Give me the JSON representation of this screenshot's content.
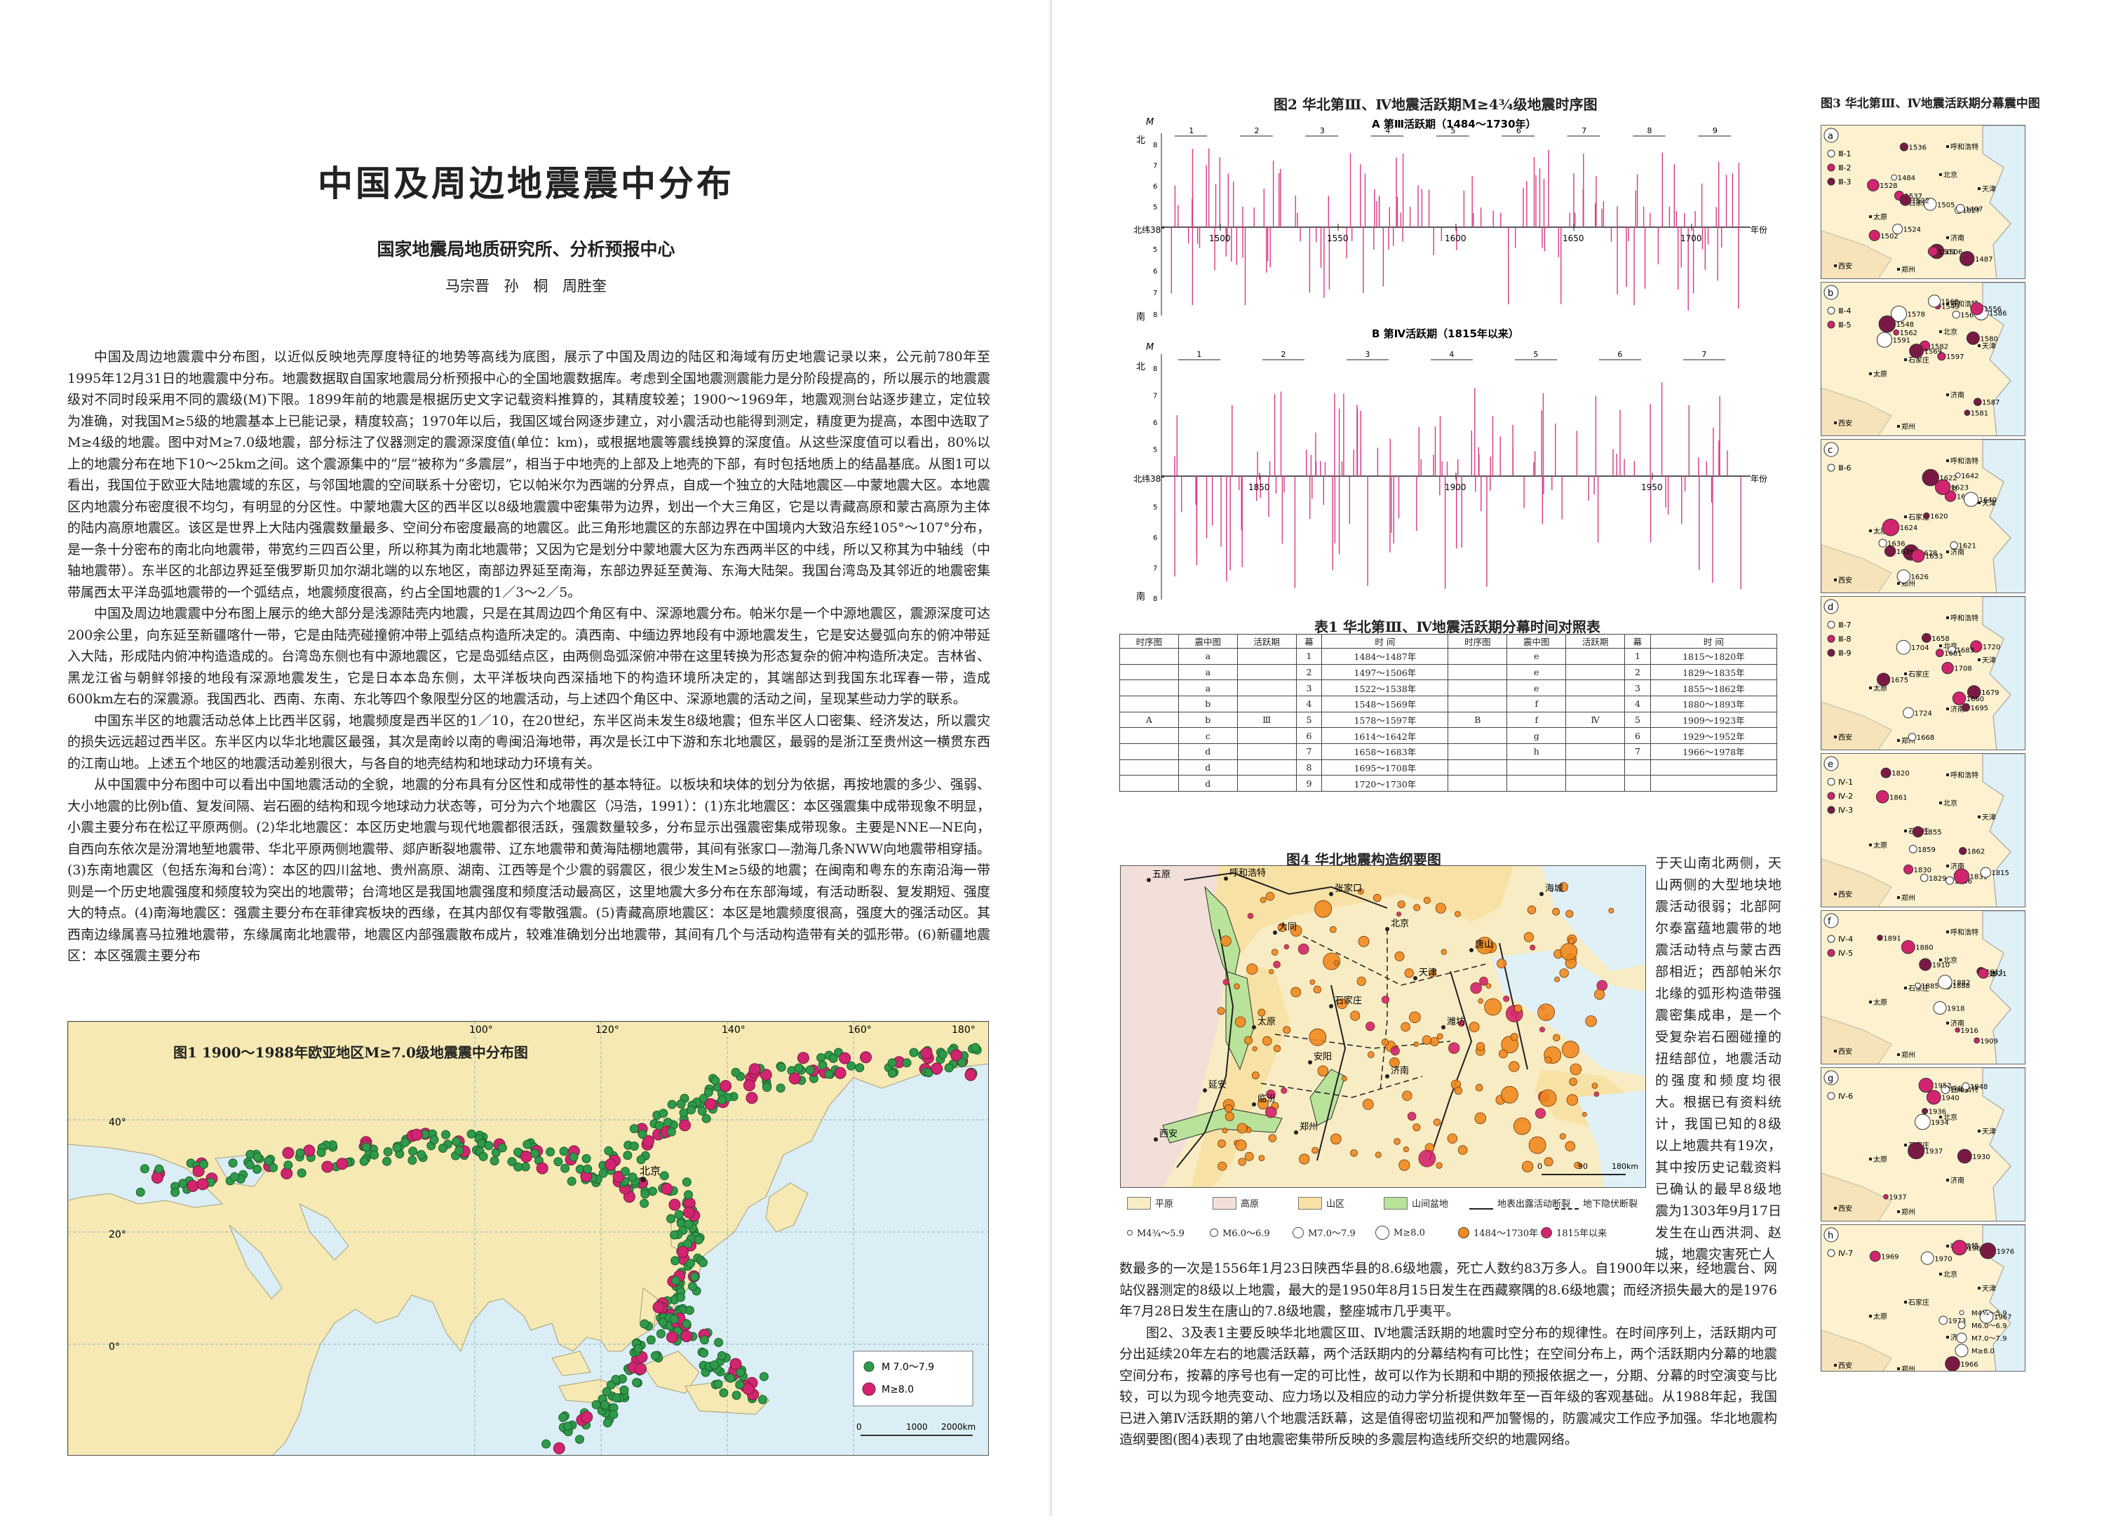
{
  "left_page": {
    "title": "中国及周边地震震中分布",
    "subtitle": "国家地震局地质研究所、分析预报中心",
    "authors": "马宗晋 孙 桐 周胜奎",
    "paragraphs": [
      "中国及周边地震震中分布图，以近似反映地壳厚度特征的地势等高线为底图，展示了中国及周边的陆区和海域有历史地震记录以来，公元前780年至1995年12月31日的地震震中分布。地震数据取自国家地震局分析预报中心的全国地震数据库。考虑到全国地震测震能力是分阶段提高的，所以展示的地震震级对不同时段采用不同的震级(M)下限。1899年前的地震是根据历史文字记载资料推算的，其精度较差；1900～1969年，地震观测台站逐步建立，定位较为准确，对我国M≥5级的地震基本上已能记录，精度较高；1970年以后，我国区域台网逐步建立，对小震活动也能得到测定，精度更为提高，本图中选取了M≥4级的地震。图中对M≥7.0级地震，部分标注了仪器测定的震源深度值(单位：km)，或根据地震等震线换算的深度值。从这些深度值可以看出，80%以上的地震分布在地下10～25km之间。这个震源集中的“层”被称为“多震层”，相当于中地壳的上部及上地壳的下部，有时包括地质上的结晶基底。从图1可以看出，我国位于欧亚大陆地震域的东区，与邻国地震的空间联系十分密切，它以帕米尔为西端的分界点，自成一个独立的大陆地震区—中蒙地震大区。本地震区内地震分布密度很不均匀，有明显的分区性。中蒙地震大区的西半区以8级地震震中密集带为边界，划出一个大三角区，它是以青藏高原和蒙古高原为主体的陆内高原地震区。该区是世界上大陆内强震数量最多、空间分布密度最高的地震区。此三角形地震区的东部边界在中国境内大致沿东经105°～107°分布，是一条十分密布的南北向地震带，带宽约三四百公里，所以称其为南北地震带；又因为它是划分中蒙地震大区为东西两半区的中线，所以又称其为中轴线（中轴地震带）。东半区的北部边界延至俄罗斯贝加尔湖北端的以东地区，南部边界延至南海，东部边界延至黄海、东海大陆架。我国台湾岛及其邻近的地震密集带属西太平洋岛弧地震带的一个弧结点，地震频度很高，约占全国地震的1／3～2／5。",
      "中国及周边地震震中分布图上展示的绝大部分是浅源陆壳内地震，只是在其周边四个角区有中、深源地震分布。帕米尔是一个中源地震区，震源深度可达200余公里，向东延至新疆喀什一带，它是由陆壳碰撞俯冲带上弧结点构造所决定的。滇西南、中缅边界地段有中源地震发生，它是安达曼弧向东的俯冲带延入大陆，形成陆内俯冲构造造成的。台湾岛东侧也有中源地震区，它是岛弧结点区，由两侧岛弧深俯冲带在这里转换为形态复杂的俯冲构造所决定。吉林省、黑龙江省与朝鲜邻接的地段有深源地震发生，它是日本本岛东侧，太平洋板块向西深插地下的构造环境所决定的，其端部达到我国东北珲春一带，造成600km左右的深震源。我国西北、西南、东南、东北等四个象限型分区的地震活动，与上述四个角区中、深源地震的活动之间，呈现某些动力学的联系。",
      "中国东半区的地震活动总体上比西半区弱，地震频度是西半区的1／10，在20世纪，东半区尚未发生8级地震；但东半区人口密集、经济发达，所以震灾的损失远远超过西半区。东半区内以华北地震区最强，其次是南岭以南的粤闽沿海地带，再次是长江中下游和东北地震区，最弱的是浙江至贵州这一横贯东西的江南山地。上述五个地区的地震活动差别很大，与各自的地壳结构和地球动力环境有关。",
      "从中国震中分布图中可以看出中国地震活动的全貌，地震的分布具有分区性和成带性的基本特征。以板块和块体的划分为依据，再按地震的多少、强弱、大小地震的比例b值、复发间隔、岩石圈的结构和现今地球动力状态等，可分为六个地震区（冯浩，1991）：(1)东北地震区：本区强震集中成带现象不明显，小震主要分布在松辽平原两侧。(2)华北地震区：本区历史地震与现代地震都很活跃，强震数量较多，分布显示出强震密集成带现象。主要是NNE—NE向，自西向东依次是汾渭地堑地震带、华北平原两侧地震带、郯庐断裂地震带、辽东地震带和黄海陆棚地震带，其间有张家口—渤海几条NWW向地震带相穿插。(3)东南地震区（包括东海和台湾）：本区的四川盆地、贵州高原、湖南、江西等是个少震的弱震区，很少发生M≥5级的地震；在闽南和粤东的东南沿海一带则是一个历史地震强度和频度较为突出的地震带；台湾地区是我国地震强度和频度活动最高区，这里地震大多分布在东部海域，有活动断裂、复发期短、强度大的特点。(4)南海地震区：强震主要分布在菲律宾板块的西缘，在其内部仅有零散强震。(5)青藏高原地震区：本区是地震频度很高，强度大的强活动区。其西南边缘属喜马拉雅地震带，东缘属南北地震带，地震区内部强震散布成片，较难准确划分出地震带，其间有几个与活动构造带有关的弧形带。(6)新疆地震区：本区强震主要分布"
    ]
  },
  "fig1": {
    "title": "图1 1900～1988年欧亚地区M≥7.0级地震震中分布图",
    "legend": [
      "M 7.0～7.9",
      "M≥8.0"
    ],
    "scale": [
      "0",
      "1000",
      "2000km"
    ],
    "lat_labels": [
      "40°",
      "20°",
      "0°"
    ],
    "lon_labels": [
      "100°",
      "120°",
      "140°",
      "160°",
      "180°"
    ],
    "city": "北京",
    "colors": {
      "land": "#f6e9b3",
      "sea": "#dbeef5",
      "m7": "#2e9a4a",
      "m8": "#d2246f"
    }
  },
  "fig2": {
    "title": "图2 华北第Ⅲ、Ⅳ地震活跃期M≥4¾级地震时序图",
    "a": {
      "subtitle": "A 第Ⅲ活跃期（1484～1730年）",
      "ticks": [
        "1500",
        "1550",
        "1600",
        "1650",
        "1700"
      ],
      "episodes": [
        "1",
        "2",
        "3",
        "4",
        "5",
        "6",
        "7",
        "8",
        "9"
      ],
      "lat_label": "北纬38°",
      "axis_label": "年份",
      "north": "北",
      "south": "南",
      "ylabel": "M",
      "mag_ticks": [
        "8",
        "7",
        "6",
        "5",
        "5",
        "6",
        "7",
        "8"
      ]
    },
    "b": {
      "subtitle": "B 第Ⅳ活跃期（1815年以来）",
      "ticks": [
        "1850",
        "1900",
        "1950"
      ],
      "episodes": [
        "1",
        "2",
        "3",
        "4",
        "5",
        "6",
        "7"
      ],
      "lat_label": "北纬38°",
      "axis_label": "年份",
      "north": "北",
      "south": "南",
      "ylabel": "M",
      "mag_ticks": [
        "8",
        "7",
        "6",
        "5",
        "5",
        "6",
        "7",
        "8"
      ]
    },
    "color": "#d63a86"
  },
  "table1": {
    "title": "表1 华北第Ⅲ、Ⅳ地震活跃期分幕时间对照表",
    "headers": [
      "时序图",
      "震中图",
      "活跃期",
      "幕",
      "时 间"
    ],
    "left": {
      "seq": "A",
      "period": "Ⅲ",
      "rows": [
        {
          "map": "a",
          "mu": "1",
          "time": "1484～1487年"
        },
        {
          "map": "a",
          "mu": "2",
          "time": "1497～1506年"
        },
        {
          "map": "a",
          "mu": "3",
          "time": "1522～1538年"
        },
        {
          "map": "b",
          "mu": "4",
          "time": "1548～1569年"
        },
        {
          "map": "b",
          "mu": "5",
          "time": "1578～1597年"
        },
        {
          "map": "c",
          "mu": "6",
          "time": "1614～1642年"
        },
        {
          "map": "d",
          "mu": "7",
          "time": "1658～1683年"
        },
        {
          "map": "d",
          "mu": "8",
          "time": "1695～1708年"
        },
        {
          "map": "d",
          "mu": "9",
          "time": "1720～1730年"
        }
      ]
    },
    "right": {
      "seq": "B",
      "period": "Ⅳ",
      "rows": [
        {
          "map": "e",
          "mu": "1",
          "time": "1815～1820年"
        },
        {
          "map": "e",
          "mu": "2",
          "time": "1829～1835年"
        },
        {
          "map": "e",
          "mu": "3",
          "time": "1855～1862年"
        },
        {
          "map": "f",
          "mu": "4",
          "time": "1880～1893年"
        },
        {
          "map": "f",
          "mu": "5",
          "time": "1909～1923年"
        },
        {
          "map": "g",
          "mu": "6",
          "time": "1929～1952年"
        },
        {
          "map": "h",
          "mu": "7",
          "time": "1966～1978年"
        }
      ]
    }
  },
  "fig4": {
    "title": "图4 华北地震构造纲要图",
    "places": [
      "五原",
      "呼和浩特",
      "张家口",
      "北京",
      "天津",
      "唐山",
      "大同",
      "石家庄",
      "太原",
      "济南",
      "延安",
      "西安",
      "郑州",
      "临汾",
      "安阳",
      "潍坊",
      "海城"
    ],
    "scale": [
      "0",
      "90",
      "180km"
    ],
    "legend": [
      {
        "label": "平原",
        "color": "#f7ecc3"
      },
      {
        "label": "高原",
        "color": "#f3dfd9"
      },
      {
        "label": "山区",
        "color": "#f7e1a5"
      },
      {
        "label": "山间盆地",
        "color": "#b9e39a"
      },
      {
        "label": "地表出露活动断裂",
        "color": "#222222"
      },
      {
        "label": "地下隐伏断裂",
        "color": "#222222"
      }
    ],
    "legend_mag": [
      "M4¾～5.9",
      "M6.0～6.9",
      "M7.0～7.9",
      "M≥8.0",
      "1484～1730年",
      "1815年以来"
    ]
  },
  "fig3": {
    "title": "图3 华北第Ⅲ、Ⅳ地震活跃期分幕震中图",
    "panels": [
      {
        "id": "a",
        "legend": [
          "Ⅲ-1",
          "Ⅲ-2",
          "Ⅲ-3"
        ],
        "years": [
          "1484",
          "1537",
          "1536",
          "1527",
          "1528",
          "1506",
          "1497",
          "1502",
          "1487",
          "1505",
          "1501",
          "1522",
          "1524"
        ]
      },
      {
        "id": "b",
        "legend": [
          "Ⅲ-4",
          "Ⅲ-5"
        ],
        "years": [
          "1578",
          "1582",
          "1581",
          "1567",
          "1597",
          "1580",
          "1586",
          "1562",
          "1548",
          "1591",
          "1549",
          "1587",
          "1568",
          "1556",
          "1569"
        ]
      },
      {
        "id": "c",
        "legend": [
          "Ⅲ-6"
        ],
        "years": [
          "1626",
          "1616",
          "1628",
          "1621",
          "1624",
          "1639",
          "1636",
          "1633",
          "1620",
          "1642",
          "1623",
          "1622",
          "1640"
        ]
      },
      {
        "id": "d",
        "legend": [
          "Ⅲ-7",
          "Ⅲ-8",
          "Ⅲ-9"
        ],
        "years": [
          "1724",
          "1720",
          "1679",
          "1683",
          "1660",
          "1658",
          "1704",
          "1681",
          "1695",
          "1668",
          "1708",
          "1675"
        ]
      },
      {
        "id": "e",
        "legend": [
          "Ⅳ-1",
          "Ⅳ-2",
          "Ⅳ-3"
        ],
        "years": [
          "1859",
          "1861",
          "1855",
          "1856",
          "1830",
          "1862",
          "1829",
          "1831",
          "1820",
          "1815"
        ]
      },
      {
        "id": "f",
        "legend": [
          "Ⅳ-4",
          "Ⅳ-5"
        ],
        "years": [
          "1885",
          "1880",
          "1911",
          "1888",
          "1909",
          "1891",
          "1882",
          "1921",
          "1910",
          "1918",
          "1916"
        ]
      },
      {
        "id": "g",
        "legend": [
          "Ⅳ-6"
        ],
        "years": [
          "1934",
          "1940",
          "1936",
          "1945",
          "1952",
          "1937",
          "1948",
          "1937",
          "1930"
        ]
      },
      {
        "id": "h",
        "legend": [
          "Ⅳ-7"
        ],
        "years": [
          "1970",
          "1967",
          "1976",
          "1973",
          "1969",
          "1966",
          "1967"
        ]
      }
    ],
    "cities": [
      "呼和浩特",
      "北京",
      "天津",
      "石家庄",
      "太原",
      "济南",
      "西安",
      "郑州"
    ],
    "mag_legend": [
      "M4¾～5.9",
      "M6.0～6.9",
      "M7.0～7.9",
      "M≥8.0"
    ],
    "land": "#fdf1cf",
    "sea": "#dff0f7"
  },
  "right_page": {
    "side_text": "于天山南北两侧，天山两侧的大型地块地震活动很弱；北部阿尔泰富蕴地震带的地震活动特点与蒙古西部相近；西部帕米尔北缘的弧形构造带强震密集成串，是一个受复杂岩石圈碰撞的扭结部位，地震活动的强度和频度均很大。根据已有资料统计，我国已知的8级以上地震共有19次，其中按历史记载资料已确认的最早8级地震为1303年9月17日发生在山西洪洞、赵城，地震灾害死亡人",
    "bottom_paragraphs": [
      "数最多的一次是1556年1月23日陕西华县的8.6级地震，死亡人数约83万多人。自1900年以来，经地震台、网站仪器测定的8级以上地震，最大的是1950年8月15日发生在西藏察隅的8.6级地震；而经济损失最大的是1976年7月28日发生在唐山的7.8级地震，整座城市几乎夷平。",
      "图2、3及表1主要反映华北地震区Ⅲ、Ⅳ地震活跃期的地震时空分布的规律性。在时间序列上，活跃期内可分出延续20年左右的地震活跃幕，两个活跃期内的分幕结构有可比性；在空间分布上，两个活跃期内分幕的地震空间分布，按幕的序号也有一定的可比性，故可以作为长期和中期的预报依据之一，分期、分幕的时空演变与比较，可以为现今地壳变动、应力场以及相应的动力学分析提供数年至一百年级的客观基础。从1988年起，我国已进入第Ⅳ活跃期的第八个地震活跃幕，这是值得密切监视和严加警惕的，防震减灾工作应予加强。华北地震构造纲要图(图4)表现了由地震密集带所反映的多震层构造线所交织的地震网络。"
    ]
  }
}
